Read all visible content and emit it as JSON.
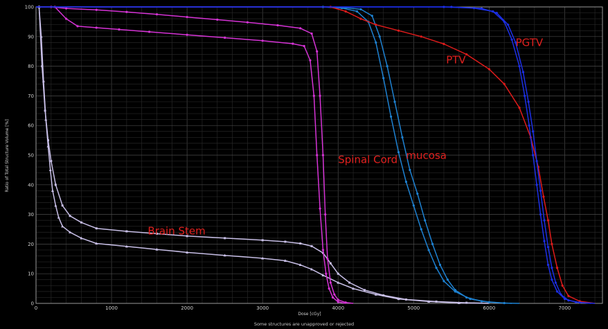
{
  "chart_data": {
    "type": "line",
    "title": "",
    "xlabel": "Dose [cGy]",
    "ylabel": "Ratio of Total Structure Volume [%]",
    "xlim": [
      0,
      7500
    ],
    "ylim": [
      0,
      100
    ],
    "x_ticks": [
      "0",
      "1000",
      "2000",
      "3000",
      "4000",
      "5000",
      "6000",
      "7000"
    ],
    "y_ticks": [
      "0",
      "10",
      "20",
      "30",
      "40",
      "50",
      "60",
      "70",
      "80",
      "90",
      "100"
    ],
    "grid": true,
    "footer": "Some structures are unapproved or rejected",
    "series": [
      {
        "name": "Brain Stem",
        "color": "#c8bfe7",
        "marker": "square",
        "points": [
          [
            0,
            100
          ],
          [
            40,
            100
          ],
          [
            80,
            80
          ],
          [
            120,
            65
          ],
          [
            160,
            55
          ],
          [
            200,
            48
          ],
          [
            260,
            40
          ],
          [
            350,
            33
          ],
          [
            450,
            29.5
          ],
          [
            600,
            27.3
          ],
          [
            800,
            25.3
          ],
          [
            1200,
            24.3
          ],
          [
            1600,
            23.5
          ],
          [
            2000,
            22.7
          ],
          [
            2500,
            22
          ],
          [
            3000,
            21.3
          ],
          [
            3300,
            20.8
          ],
          [
            3500,
            20.2
          ],
          [
            3650,
            19.3
          ],
          [
            3800,
            17
          ],
          [
            3900,
            13.5
          ],
          [
            4000,
            10
          ],
          [
            4150,
            7
          ],
          [
            4350,
            4.5
          ],
          [
            4600,
            2.7
          ],
          [
            4900,
            1.3
          ],
          [
            5300,
            0.6
          ],
          [
            5700,
            0.2
          ],
          [
            6000,
            0.05
          ]
        ]
      },
      {
        "name": "",
        "color": "#c8bfe7",
        "marker": "triangle",
        "points": [
          [
            0,
            100
          ],
          [
            40,
            100
          ],
          [
            70,
            90
          ],
          [
            100,
            75
          ],
          [
            130,
            62
          ],
          [
            160,
            53
          ],
          [
            190,
            45
          ],
          [
            220,
            38
          ],
          [
            260,
            33
          ],
          [
            300,
            29
          ],
          [
            350,
            26
          ],
          [
            450,
            24
          ],
          [
            600,
            22
          ],
          [
            800,
            20.2
          ],
          [
            1200,
            19.2
          ],
          [
            1600,
            18.2
          ],
          [
            2000,
            17.2
          ],
          [
            2500,
            16.2
          ],
          [
            3000,
            15.2
          ],
          [
            3300,
            14.4
          ],
          [
            3500,
            13
          ],
          [
            3650,
            11.5
          ],
          [
            3800,
            9.5
          ],
          [
            4000,
            7
          ],
          [
            4200,
            5
          ],
          [
            4500,
            3
          ],
          [
            4800,
            1.5
          ],
          [
            5200,
            0.6
          ],
          [
            5600,
            0.15
          ],
          [
            6000,
            0
          ]
        ]
      },
      {
        "name": "Spinal Cord",
        "color": "#d633d6",
        "marker": "dot",
        "points": [
          [
            0,
            100
          ],
          [
            200,
            100
          ],
          [
            400,
            99.5
          ],
          [
            800,
            99
          ],
          [
            1200,
            98.3
          ],
          [
            1600,
            97.5
          ],
          [
            2000,
            96.6
          ],
          [
            2400,
            95.7
          ],
          [
            2800,
            94.8
          ],
          [
            3200,
            93.8
          ],
          [
            3500,
            92.8
          ],
          [
            3650,
            91
          ],
          [
            3720,
            85
          ],
          [
            3760,
            70
          ],
          [
            3800,
            50
          ],
          [
            3830,
            30
          ],
          [
            3860,
            15
          ],
          [
            3900,
            7
          ],
          [
            3950,
            3
          ],
          [
            4000,
            1.2
          ],
          [
            4100,
            0.3
          ],
          [
            4200,
            0
          ]
        ]
      },
      {
        "name": "",
        "color": "#d633d6",
        "marker": "dot",
        "points": [
          [
            0,
            100
          ],
          [
            250,
            100
          ],
          [
            400,
            96
          ],
          [
            550,
            93.5
          ],
          [
            800,
            93
          ],
          [
            1100,
            92.4
          ],
          [
            1500,
            91.6
          ],
          [
            2000,
            90.6
          ],
          [
            2500,
            89.6
          ],
          [
            3000,
            88.6
          ],
          [
            3400,
            87.6
          ],
          [
            3550,
            86.8
          ],
          [
            3630,
            82
          ],
          [
            3680,
            70
          ],
          [
            3720,
            50
          ],
          [
            3760,
            32
          ],
          [
            3800,
            18
          ],
          [
            3840,
            10
          ],
          [
            3880,
            5
          ],
          [
            3930,
            2
          ],
          [
            4000,
            0.5
          ],
          [
            4100,
            0
          ]
        ]
      },
      {
        "name": "mucosa",
        "color": "#1e82d2",
        "marker": "dot",
        "points": [
          [
            0,
            100
          ],
          [
            3800,
            100
          ],
          [
            4100,
            99.7
          ],
          [
            4300,
            99.2
          ],
          [
            4450,
            97
          ],
          [
            4550,
            90
          ],
          [
            4650,
            80
          ],
          [
            4750,
            68
          ],
          [
            4850,
            56
          ],
          [
            4950,
            45
          ],
          [
            5050,
            37
          ],
          [
            5150,
            28
          ],
          [
            5250,
            20
          ],
          [
            5350,
            13
          ],
          [
            5450,
            8
          ],
          [
            5550,
            4.5
          ],
          [
            5700,
            2
          ],
          [
            5900,
            0.7
          ],
          [
            6200,
            0.1
          ],
          [
            6400,
            0
          ]
        ]
      },
      {
        "name": "",
        "color": "#1e82d2",
        "marker": "dot",
        "points": [
          [
            0,
            100
          ],
          [
            3800,
            100
          ],
          [
            4050,
            99.6
          ],
          [
            4250,
            98.5
          ],
          [
            4400,
            95
          ],
          [
            4500,
            88
          ],
          [
            4600,
            76
          ],
          [
            4700,
            63
          ],
          [
            4800,
            51
          ],
          [
            4900,
            41
          ],
          [
            5000,
            33
          ],
          [
            5100,
            25
          ],
          [
            5200,
            18
          ],
          [
            5300,
            12
          ],
          [
            5400,
            7.5
          ],
          [
            5550,
            4
          ],
          [
            5750,
            1.5
          ],
          [
            6000,
            0.4
          ],
          [
            6300,
            0
          ]
        ]
      },
      {
        "name": "PTV",
        "color": "#e01b1b",
        "marker": "dot",
        "points": [
          [
            0,
            100
          ],
          [
            3900,
            100
          ],
          [
            4100,
            98.5
          ],
          [
            4300,
            96
          ],
          [
            4500,
            94
          ],
          [
            4800,
            92
          ],
          [
            5100,
            90
          ],
          [
            5400,
            87.5
          ],
          [
            5700,
            84
          ],
          [
            6000,
            79
          ],
          [
            6200,
            74
          ],
          [
            6400,
            66
          ],
          [
            6550,
            56
          ],
          [
            6650,
            46
          ],
          [
            6720,
            36
          ],
          [
            6780,
            28
          ],
          [
            6830,
            20
          ],
          [
            6900,
            12
          ],
          [
            6970,
            6
          ],
          [
            7050,
            2.5
          ],
          [
            7200,
            0.7
          ],
          [
            7400,
            0
          ]
        ]
      },
      {
        "name": "PGTV",
        "color": "#1c2fe6",
        "marker": "dot",
        "points": [
          [
            0,
            100
          ],
          [
            5500,
            100
          ],
          [
            5900,
            99.5
          ],
          [
            6100,
            98
          ],
          [
            6250,
            94
          ],
          [
            6350,
            88
          ],
          [
            6450,
            78
          ],
          [
            6520,
            68
          ],
          [
            6580,
            58
          ],
          [
            6630,
            48
          ],
          [
            6680,
            38
          ],
          [
            6730,
            28
          ],
          [
            6780,
            19
          ],
          [
            6830,
            12
          ],
          [
            6880,
            7
          ],
          [
            6950,
            3
          ],
          [
            7050,
            1
          ],
          [
            7200,
            0.3
          ],
          [
            7400,
            0
          ]
        ]
      },
      {
        "name": "",
        "color": "#1c2fe6",
        "marker": "dot",
        "points": [
          [
            0,
            100
          ],
          [
            5400,
            100
          ],
          [
            5800,
            99.6
          ],
          [
            6050,
            98.5
          ],
          [
            6200,
            95
          ],
          [
            6300,
            89
          ],
          [
            6400,
            80
          ],
          [
            6470,
            70
          ],
          [
            6530,
            60
          ],
          [
            6580,
            50
          ],
          [
            6630,
            40
          ],
          [
            6680,
            30
          ],
          [
            6730,
            21
          ],
          [
            6780,
            13
          ],
          [
            6830,
            8
          ],
          [
            6900,
            4
          ],
          [
            7000,
            1.5
          ],
          [
            7150,
            0.4
          ],
          [
            7350,
            0
          ]
        ]
      }
    ],
    "annotations": [
      {
        "text": "Brain Stem",
        "x": 1480,
        "y": 23.2,
        "color": "#e0201e"
      },
      {
        "text": "Spinal Cord",
        "x": 4000,
        "y": 47.3,
        "color": "#e0201e"
      },
      {
        "text": "mucosa",
        "x": 4900,
        "y": 48.7,
        "color": "#e0201e"
      },
      {
        "text": "PTV",
        "x": 5430,
        "y": 80.9,
        "color": "#e0201e"
      },
      {
        "text": "PGTV",
        "x": 6350,
        "y": 86.8,
        "color": "#e0201e"
      }
    ]
  }
}
